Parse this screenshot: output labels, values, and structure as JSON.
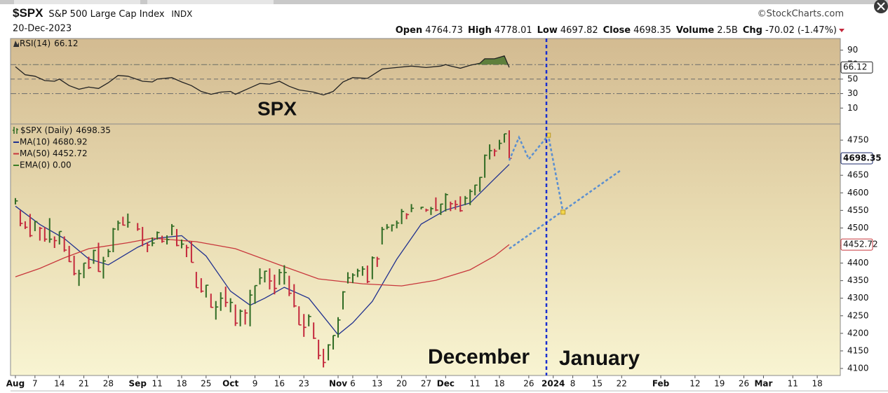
{
  "header": {
    "symbol": "$SPX",
    "name": "S&P 500 Large Cap Index",
    "exchange": "INDX",
    "date": "20-Dec-2023",
    "source": "©StockCharts.com",
    "quote": [
      {
        "label": "Open",
        "value": 4764.73
      },
      {
        "label": "High",
        "value": 4778.01
      },
      {
        "label": "Low",
        "value": 4697.82
      },
      {
        "label": "Close",
        "value": 4698.35
      },
      {
        "label": "Volume",
        "value": "2.5B"
      },
      {
        "label": "Chg",
        "value": -70.02,
        "extra": "(-1.47%)"
      }
    ]
  },
  "chart_data": [
    {
      "type": "line",
      "title": "RSI(14)",
      "color": "#222222",
      "fill_above": 70,
      "fill_color": "#5e7f3c",
      "x": [
        "2023-08-01",
        "2023-08-03",
        "2023-08-07",
        "2023-08-09",
        "2023-08-11",
        "2023-08-14",
        "2023-08-16",
        "2023-08-18",
        "2023-08-22",
        "2023-08-24",
        "2023-08-28",
        "2023-08-30",
        "2023-09-01",
        "2023-09-06",
        "2023-09-08",
        "2023-09-11",
        "2023-09-14",
        "2023-09-18",
        "2023-09-20",
        "2023-09-22",
        "2023-09-26",
        "2023-09-28",
        "2023-10-02",
        "2023-10-03",
        "2023-10-06",
        "2023-10-10",
        "2023-10-12",
        "2023-10-16",
        "2023-10-18",
        "2023-10-20",
        "2023-10-23",
        "2023-10-25",
        "2023-10-27",
        "2023-10-31",
        "2023-11-02",
        "2023-11-06",
        "2023-11-09",
        "2023-11-14",
        "2023-11-17",
        "2023-11-22",
        "2023-11-27",
        "2023-11-30",
        "2023-12-01",
        "2023-12-04",
        "2023-12-06",
        "2023-12-08",
        "2023-12-12",
        "2023-12-13",
        "2023-12-15",
        "2023-12-18",
        "2023-12-19",
        "2023-12-20"
      ],
      "values": [
        67,
        56,
        54,
        48,
        47,
        50,
        41,
        36,
        39,
        37,
        45,
        55,
        54,
        47,
        46,
        50,
        52,
        46,
        41,
        33,
        29,
        32,
        33,
        29,
        38,
        44,
        43,
        47,
        40,
        35,
        34,
        32,
        28,
        33,
        46,
        52,
        51,
        64,
        66,
        68,
        66,
        68,
        70,
        68,
        65,
        69,
        72,
        78,
        78,
        80,
        82,
        66.12
      ],
      "xlim": [
        "2023-07-31",
        "2024-03-22"
      ],
      "ylim": [
        -12,
        106
      ],
      "yticks": [
        10,
        30,
        50,
        70,
        90
      ],
      "reference_lines": [
        70,
        50,
        30
      ]
    },
    {
      "type": "ohlc",
      "title": "$SPX (Daily)",
      "up_color": "#2f6b23",
      "down_color": "#c4283c",
      "x": [
        "2023-08-01",
        "2023-08-02",
        "2023-08-03",
        "2023-08-04",
        "2023-08-07",
        "2023-08-08",
        "2023-08-09",
        "2023-08-10",
        "2023-08-11",
        "2023-08-14",
        "2023-08-15",
        "2023-08-16",
        "2023-08-17",
        "2023-08-18",
        "2023-08-21",
        "2023-08-22",
        "2023-08-23",
        "2023-08-24",
        "2023-08-25",
        "2023-08-28",
        "2023-08-29",
        "2023-08-30",
        "2023-08-31",
        "2023-09-01",
        "2023-09-05",
        "2023-09-06",
        "2023-09-07",
        "2023-09-08",
        "2023-09-11",
        "2023-09-12",
        "2023-09-13",
        "2023-09-14",
        "2023-09-15",
        "2023-09-18",
        "2023-09-19",
        "2023-09-20",
        "2023-09-21",
        "2023-09-22",
        "2023-09-25",
        "2023-09-26",
        "2023-09-27",
        "2023-09-28",
        "2023-09-29",
        "2023-10-02",
        "2023-10-03",
        "2023-10-04",
        "2023-10-05",
        "2023-10-06",
        "2023-10-09",
        "2023-10-10",
        "2023-10-11",
        "2023-10-12",
        "2023-10-13",
        "2023-10-16",
        "2023-10-17",
        "2023-10-18",
        "2023-10-19",
        "2023-10-20",
        "2023-10-23",
        "2023-10-24",
        "2023-10-25",
        "2023-10-26",
        "2023-10-27",
        "2023-10-30",
        "2023-10-31",
        "2023-11-01",
        "2023-11-02",
        "2023-11-03",
        "2023-11-06",
        "2023-11-07",
        "2023-11-08",
        "2023-11-09",
        "2023-11-10",
        "2023-11-13",
        "2023-11-14",
        "2023-11-15",
        "2023-11-16",
        "2023-11-17",
        "2023-11-20",
        "2023-11-21",
        "2023-11-22",
        "2023-11-24",
        "2023-11-27",
        "2023-11-28",
        "2023-11-29",
        "2023-11-30",
        "2023-12-01",
        "2023-12-04",
        "2023-12-05",
        "2023-12-06",
        "2023-12-07",
        "2023-12-08",
        "2023-12-11",
        "2023-12-12",
        "2023-12-13",
        "2023-12-14",
        "2023-12-15",
        "2023-12-18",
        "2023-12-19",
        "2023-12-20"
      ],
      "high": [
        4585,
        4550,
        4519,
        4540,
        4519,
        4503,
        4502,
        4528,
        4476,
        4490,
        4476,
        4449,
        4421,
        4381,
        4400,
        4418,
        4438,
        4458,
        4418,
        4440,
        4500,
        4521,
        4532,
        4541,
        4514,
        4503,
        4459,
        4473,
        4490,
        4478,
        4479,
        4511,
        4497,
        4467,
        4452,
        4461,
        4375,
        4357,
        4338,
        4313,
        4292,
        4317,
        4333,
        4300,
        4282,
        4268,
        4268,
        4324,
        4336,
        4385,
        4378,
        4385,
        4367,
        4383,
        4394,
        4364,
        4340,
        4277,
        4255,
        4254,
        4231,
        4182,
        4156,
        4169,
        4194,
        4246,
        4320,
        4374,
        4371,
        4384,
        4391,
        4393,
        4419,
        4418,
        4503,
        4511,
        4510,
        4521,
        4554,
        4542,
        4568,
        4560,
        4555,
        4560,
        4587,
        4569,
        4599,
        4575,
        4579,
        4590,
        4591,
        4610,
        4623,
        4645,
        4709,
        4738,
        4725,
        4751,
        4768,
        4778.01
      ],
      "low": [
        4567,
        4505,
        4497,
        4474,
        4491,
        4464,
        4461,
        4458,
        4443,
        4453,
        4432,
        4403,
        4365,
        4335,
        4357,
        4383,
        4398,
        4375,
        4356,
        4417,
        4431,
        4493,
        4507,
        4501,
        4492,
        4448,
        4431,
        4448,
        4467,
        4458,
        4453,
        4479,
        4448,
        4442,
        4417,
        4402,
        4330,
        4316,
        4302,
        4273,
        4239,
        4264,
        4275,
        4260,
        4221,
        4220,
        4225,
        4220,
        4284,
        4339,
        4345,
        4325,
        4311,
        4338,
        4339,
        4306,
        4274,
        4224,
        4190,
        4220,
        4184,
        4126,
        4103,
        4123,
        4154,
        4188,
        4268,
        4342,
        4343,
        4360,
        4364,
        4343,
        4354,
        4389,
        4453,
        4496,
        4490,
        4499,
        4511,
        4525,
        4545,
        4553,
        4546,
        4537,
        4548,
        4537,
        4547,
        4548,
        4552,
        4546,
        4565,
        4565,
        4593,
        4603,
        4643,
        4695,
        4704,
        4723,
        4743,
        4697.82
      ],
      "close": [
        4577,
        4513,
        4502,
        4478,
        4518,
        4499,
        4468,
        4468,
        4464,
        4490,
        4437,
        4404,
        4370,
        4370,
        4400,
        4387,
        4436,
        4376,
        4406,
        4433,
        4497,
        4514,
        4508,
        4516,
        4497,
        4465,
        4451,
        4457,
        4487,
        4462,
        4467,
        4505,
        4450,
        4454,
        4444,
        4402,
        4330,
        4320,
        4337,
        4274,
        4275,
        4300,
        4288,
        4288,
        4229,
        4263,
        4258,
        4309,
        4336,
        4358,
        4377,
        4349,
        4328,
        4373,
        4373,
        4314,
        4278,
        4224,
        4217,
        4248,
        4186,
        4137,
        4117,
        4167,
        4194,
        4238,
        4318,
        4358,
        4366,
        4378,
        4383,
        4347,
        4415,
        4412,
        4496,
        4502,
        4508,
        4514,
        4547,
        4538,
        4556,
        4559,
        4551,
        4555,
        4551,
        4568,
        4595,
        4569,
        4567,
        4549,
        4585,
        4604,
        4622,
        4644,
        4707,
        4720,
        4719,
        4741,
        4768,
        4698.35
      ],
      "series": [
        {
          "name": "MA(10) 4680.92",
          "color": "#22328f",
          "x": [
            "2023-08-01",
            "2023-08-08",
            "2023-08-15",
            "2023-08-22",
            "2023-08-28",
            "2023-09-05",
            "2023-09-11",
            "2023-09-18",
            "2023-09-25",
            "2023-10-02",
            "2023-10-06",
            "2023-10-11",
            "2023-10-17",
            "2023-10-24",
            "2023-11-01",
            "2023-11-06",
            "2023-11-10",
            "2023-11-17",
            "2023-11-24",
            "2023-12-01",
            "2023-12-08",
            "2023-12-15",
            "2023-12-20"
          ],
          "values": [
            4562,
            4510,
            4470,
            4412,
            4395,
            4445,
            4471,
            4478,
            4420,
            4320,
            4280,
            4300,
            4331,
            4300,
            4196,
            4230,
            4291,
            4411,
            4511,
            4551,
            4571,
            4640,
            4680.92
          ]
        },
        {
          "name": "MA(50) 4452.72",
          "color": "#c8373c",
          "x": [
            "2023-08-01",
            "2023-08-08",
            "2023-08-15",
            "2023-08-22",
            "2023-09-01",
            "2023-09-08",
            "2023-09-21",
            "2023-10-03",
            "2023-10-16",
            "2023-10-26",
            "2023-11-08",
            "2023-11-20",
            "2023-11-29",
            "2023-12-08",
            "2023-12-15",
            "2023-12-20"
          ],
          "values": [
            4361,
            4385,
            4415,
            4441,
            4458,
            4471,
            4461,
            4441,
            4395,
            4355,
            4341,
            4335,
            4351,
            4381,
            4420,
            4452.72
          ]
        }
      ],
      "extra_legend": {
        "text": "EMA(0) 0.00",
        "color": "#3a7d25"
      },
      "projections": [
        {
          "color": "#5b8fd0",
          "x": [
            "2023-12-20",
            "2023-12-22",
            "2023-12-26",
            "2024-01-01",
            "2024-01-04"
          ],
          "values": [
            4692,
            4758,
            4696,
            4764,
            4545
          ]
        },
        {
          "color": "#5b8fd0",
          "x": [
            "2023-12-20",
            "2024-01-22"
          ],
          "values": [
            4441,
            4666
          ]
        }
      ],
      "points": {
        "color": "#f2d64b",
        "x": [
          "2024-01-01",
          "2024-01-04"
        ],
        "values": [
          4764,
          4545
        ]
      },
      "annotations": [
        {
          "text": "SPX",
          "color": "#5b8fd0"
        },
        {
          "text": "December",
          "color": "#5b8fd0"
        },
        {
          "text": "January",
          "color": "#e23ee0"
        }
      ],
      "xlim": [
        "2023-07-31",
        "2024-03-22"
      ],
      "xticks": [
        {
          "value": "2023-08-01",
          "label": "Aug"
        },
        {
          "value": "2023-08-07",
          "label": "7"
        },
        {
          "value": "2023-08-14",
          "label": "14"
        },
        {
          "value": "2023-08-21",
          "label": "21"
        },
        {
          "value": "2023-08-28",
          "label": "28"
        },
        {
          "value": "2023-09-05",
          "label": "Sep"
        },
        {
          "value": "2023-09-11",
          "label": "11"
        },
        {
          "value": "2023-09-18",
          "label": "18"
        },
        {
          "value": "2023-09-25",
          "label": "25"
        },
        {
          "value": "2023-10-02",
          "label": "Oct"
        },
        {
          "value": "2023-10-09",
          "label": "9"
        },
        {
          "value": "2023-10-16",
          "label": "16"
        },
        {
          "value": "2023-10-23",
          "label": "23"
        },
        {
          "value": "2023-11-01",
          "label": "Nov"
        },
        {
          "value": "2023-11-06",
          "label": "6"
        },
        {
          "value": "2023-11-13",
          "label": "13"
        },
        {
          "value": "2023-11-20",
          "label": "20"
        },
        {
          "value": "2023-11-27",
          "label": "27"
        },
        {
          "value": "2023-12-01",
          "label": "Dec"
        },
        {
          "value": "2023-12-11",
          "label": "11"
        },
        {
          "value": "2023-12-18",
          "label": "18"
        },
        {
          "value": "2023-12-26",
          "label": "26"
        },
        {
          "value": "2024-01-02",
          "label": "2024"
        },
        {
          "value": "2024-01-08",
          "label": "8"
        },
        {
          "value": "2024-01-15",
          "label": "15"
        },
        {
          "value": "2024-01-22",
          "label": "22"
        },
        {
          "value": "2024-02-01",
          "label": "Feb"
        },
        {
          "value": "2024-02-12",
          "label": "12"
        },
        {
          "value": "2024-02-19",
          "label": "19"
        },
        {
          "value": "2024-02-26",
          "label": "26"
        },
        {
          "value": "2024-03-01",
          "label": "Mar"
        },
        {
          "value": "2024-03-11",
          "label": "11"
        },
        {
          "value": "2024-03-18",
          "label": "18"
        }
      ],
      "ylim": [
        4080,
        4796
      ],
      "yticks": [
        4100,
        4150,
        4200,
        4250,
        4300,
        4350,
        4400,
        4450,
        4500,
        4550,
        4600,
        4650,
        4700,
        4750
      ],
      "grid": false
    }
  ]
}
